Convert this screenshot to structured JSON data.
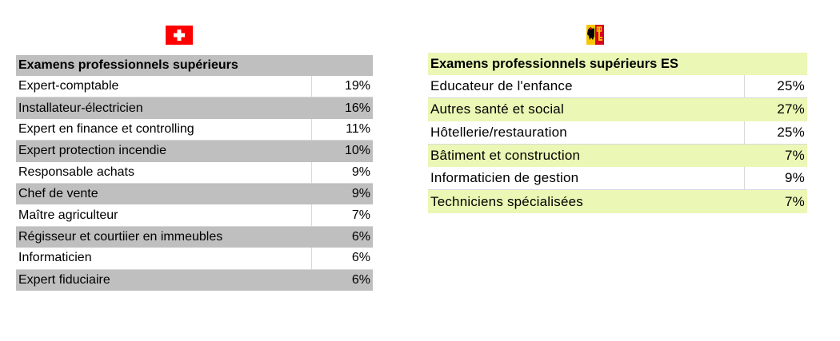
{
  "flags": {
    "left": {
      "name": "switzerland-flag",
      "color": "#ff0000"
    },
    "right": {
      "name": "geneva-flag",
      "colors": [
        "#f7c600",
        "#d8001a",
        "#000000"
      ]
    }
  },
  "left_table": {
    "header": "Examens professionnels supérieurs",
    "header_color": "#bfbfbf",
    "rows": [
      {
        "label": "Expert-comptable",
        "value": "19%"
      },
      {
        "label": "Installateur-électricien",
        "value": "16%"
      },
      {
        "label": "Expert en finance et controlling",
        "value": "11%"
      },
      {
        "label": "Expert protection incendie",
        "value": "10%"
      },
      {
        "label": "Responsable achats",
        "value": "9%"
      },
      {
        "label": "Chef de vente",
        "value": "9%"
      },
      {
        "label": "Maître agriculteur",
        "value": "7%"
      },
      {
        "label": "Régisseur et courtiier en immeubles",
        "value": "6%"
      },
      {
        "label": "Informaticien",
        "value": "6%"
      },
      {
        "label": "Expert fiduciaire",
        "value": "6%"
      }
    ]
  },
  "right_table": {
    "header": "Examens professionnels supérieurs ES",
    "header_color": "#ebf7b4",
    "rows": [
      {
        "label": "Educateur de l'enfance",
        "value": "25%"
      },
      {
        "label": "Autres santé et social",
        "value": "27%"
      },
      {
        "label": "Hôtellerie/restauration",
        "value": "25%"
      },
      {
        "label": "Bâtiment et construction",
        "value": "7%"
      },
      {
        "label": "Informaticien de gestion",
        "value": "9%"
      },
      {
        "label": "Techniciens spécialisées",
        "value": "7%"
      }
    ]
  }
}
